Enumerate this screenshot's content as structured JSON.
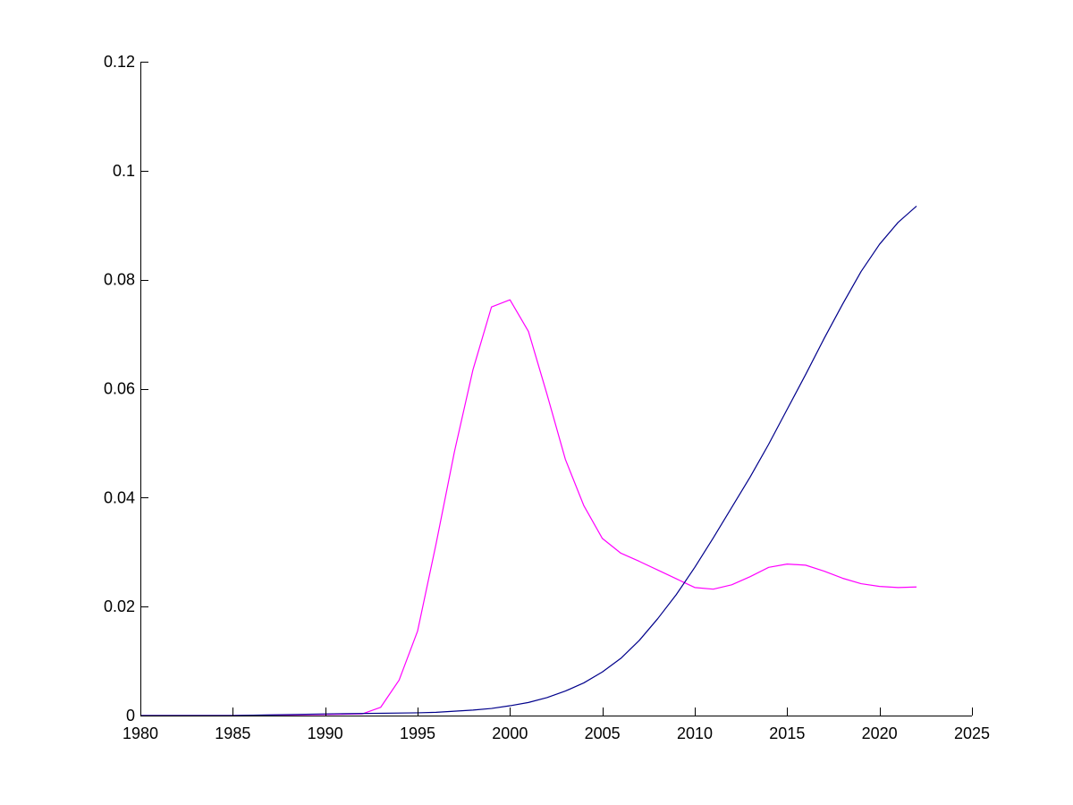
{
  "chart_data": {
    "type": "line",
    "title": "",
    "xlabel": "",
    "ylabel": "",
    "xlim": [
      1980,
      2025
    ],
    "ylim": [
      0,
      0.12
    ],
    "xticks": [
      1980,
      1985,
      1990,
      1995,
      2000,
      2005,
      2010,
      2015,
      2020,
      2025
    ],
    "xtick_labels": [
      "1980",
      "1985",
      "1990",
      "1995",
      "2000",
      "2005",
      "2010",
      "2015",
      "2020",
      "2025"
    ],
    "yticks": [
      0,
      0.02,
      0.04,
      0.06,
      0.08,
      0.1,
      0.12
    ],
    "ytick_labels": [
      "0",
      "0.02",
      "0.04",
      "0.06",
      "0.08",
      "0.1",
      "0.12"
    ],
    "grid": false,
    "legend": "none",
    "series": [
      {
        "color": "#ff00ff",
        "x": [
          1980,
          1985,
          1990,
          1992,
          1993,
          1994,
          1995,
          1996,
          1997,
          1998,
          1999,
          2000,
          2001,
          2002,
          2003,
          2004,
          2005,
          2006,
          2007,
          2008,
          2009,
          2010,
          2011,
          2012,
          2013,
          2014,
          2015,
          2016,
          2017,
          2018,
          2019,
          2020,
          2021,
          2022
        ],
        "y": [
          0,
          0,
          0.0002,
          0.0003,
          0.0015,
          0.0065,
          0.0155,
          0.0315,
          0.0485,
          0.0635,
          0.075,
          0.0763,
          0.0705,
          0.059,
          0.047,
          0.0385,
          0.0325,
          0.0298,
          0.0283,
          0.0267,
          0.0251,
          0.0235,
          0.0232,
          0.024,
          0.0255,
          0.0272,
          0.0278,
          0.0276,
          0.0265,
          0.0252,
          0.0242,
          0.0237,
          0.0235,
          0.0236
        ]
      },
      {
        "color": "#00008b",
        "x": [
          1980,
          1985,
          1990,
          1995,
          1996,
          1997,
          1998,
          1999,
          2000,
          2001,
          2002,
          2003,
          2004,
          2005,
          2006,
          2007,
          2008,
          2009,
          2010,
          2011,
          2012,
          2013,
          2014,
          2015,
          2016,
          2017,
          2018,
          2019,
          2020,
          2021,
          2022
        ],
        "y": [
          0,
          0,
          0.0003,
          0.0005,
          0.0006,
          0.0008,
          0.001,
          0.0013,
          0.0018,
          0.0024,
          0.0033,
          0.0045,
          0.006,
          0.008,
          0.0105,
          0.0138,
          0.0178,
          0.0222,
          0.0272,
          0.0326,
          0.0382,
          0.0438,
          0.0498,
          0.0562,
          0.0626,
          0.0692,
          0.0755,
          0.0815,
          0.0865,
          0.0905,
          0.0935
        ]
      }
    ]
  }
}
